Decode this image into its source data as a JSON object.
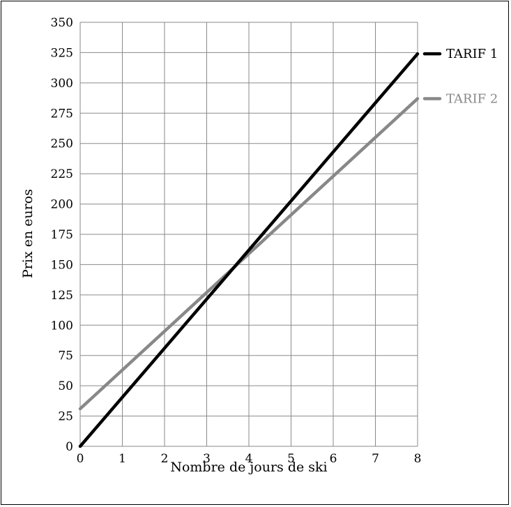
{
  "chart_data": {
    "type": "line",
    "xlabel": "Nombre de jours de ski",
    "ylabel": "Prix en euros",
    "xlim": [
      0,
      8
    ],
    "ylim": [
      0,
      350
    ],
    "x_ticks": [
      "0",
      "1",
      "2",
      "3",
      "4",
      "5",
      "6",
      "7",
      "8"
    ],
    "y_ticks": [
      "0",
      "25",
      "50",
      "75",
      "100",
      "125",
      "150",
      "175",
      "200",
      "225",
      "250",
      "275",
      "300",
      "325",
      "350"
    ],
    "grid": true,
    "legend_position": "right, at line ends",
    "series": [
      {
        "name": "TARIF 1",
        "color": "#000000",
        "x": [
          0,
          8
        ],
        "y": [
          0,
          324
        ]
      },
      {
        "name": "TARIF 2",
        "color": "#888888",
        "x": [
          0,
          8
        ],
        "y": [
          31,
          287
        ]
      }
    ]
  }
}
